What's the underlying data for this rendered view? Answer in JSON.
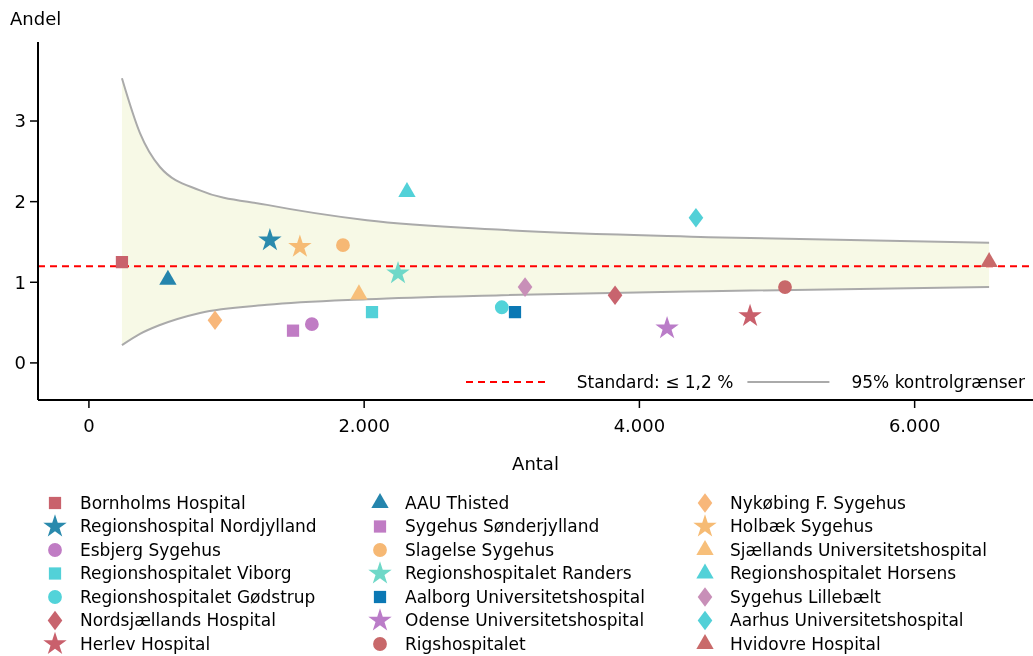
{
  "chart_data": {
    "type": "scatter",
    "xlabel": "Antal",
    "ylabel": "Andel",
    "xlim": [
      -370,
      6860
    ],
    "ylim": [
      -0.46,
      3.98
    ],
    "xticks": [
      {
        "value": 0,
        "label": "0"
      },
      {
        "value": 2000,
        "label": "2.000"
      },
      {
        "value": 4000,
        "label": "4.000"
      },
      {
        "value": 6000,
        "label": "6.000"
      }
    ],
    "yticks": [
      0,
      1,
      2,
      3
    ],
    "grid": false,
    "legend": "bottom",
    "ref_lines": [
      {
        "axis": "y",
        "value": 1.2,
        "label": "Standard: ≤ 1,2 %",
        "color": "#ff0000",
        "line_style": "dashed"
      }
    ],
    "series": [
      {
        "type": "line",
        "name": "95% kontrolgrænser",
        "color": "#aaaaaa",
        "marker": "none",
        "x": [
          240,
          371,
          516,
          807,
          1294,
          2020,
          3000,
          4500,
          6541
        ],
        "values": [
          3.53,
          2.85,
          2.43,
          2.14,
          1.96,
          1.77,
          1.65,
          1.56,
          1.49
        ],
        "upper": [
          3.53,
          2.85,
          2.43,
          2.14,
          1.96,
          1.77,
          1.65,
          1.56,
          1.49
        ],
        "lower": [
          0.22,
          0.36,
          0.47,
          0.62,
          0.72,
          0.79,
          0.84,
          0.89,
          0.94
        ]
      },
      {
        "type": "line",
        "color": "#aaaaaa",
        "marker": "none",
        "x": [
          240,
          371,
          516,
          807,
          1294,
          2020,
          3000,
          4500,
          6541
        ],
        "values": [
          0.22,
          0.36,
          0.47,
          0.62,
          0.72,
          0.79,
          0.84,
          0.89,
          0.94
        ]
      },
      {
        "name": "Bornholms Hospital",
        "color": "#c9626c",
        "marker": "square",
        "x": [
          240
        ],
        "values": [
          1.25
        ]
      },
      {
        "name": "Regionshospital Nordjylland",
        "color": "#2a8aad",
        "marker": "star",
        "x": [
          1315
        ],
        "values": [
          1.52
        ]
      },
      {
        "name": "Esbjerg Sygehus",
        "color": "#c07cc4",
        "marker": "circle",
        "x": [
          1620
        ],
        "values": [
          0.48
        ]
      },
      {
        "name": "Regionshospitalet Viborg",
        "color": "#52d1d8",
        "marker": "square",
        "x": [
          2057
        ],
        "values": [
          0.63
        ]
      },
      {
        "name": "Regionshospitalet Gødstrup",
        "color": "#52d3d9",
        "marker": "circle",
        "x": [
          3000
        ],
        "values": [
          0.69
        ]
      },
      {
        "name": "Nordsjællands Hospital",
        "color": "#c8646e",
        "marker": "diamond",
        "x": [
          3823
        ],
        "values": [
          0.84
        ]
      },
      {
        "name": "Herlev Hospital",
        "color": "#c9606c",
        "marker": "star",
        "x": [
          4804
        ],
        "values": [
          0.58
        ]
      },
      {
        "name": "AAU Thisted",
        "color": "#2585ad",
        "marker": "triangle",
        "x": [
          574
        ],
        "values": [
          1.03
        ]
      },
      {
        "name": "Sygehus Sønderjylland",
        "color": "#c07cc4",
        "marker": "square",
        "x": [
          1483
        ],
        "values": [
          0.4
        ]
      },
      {
        "name": "Slagelse Sygehus",
        "color": "#f6b874",
        "marker": "circle",
        "x": [
          1846
        ],
        "values": [
          1.46
        ]
      },
      {
        "name": "Regionshospitalet Randers",
        "color": "#6fd8c8",
        "marker": "star",
        "x": [
          2246
        ],
        "values": [
          1.11
        ]
      },
      {
        "name": "Aalborg Universitetshospital",
        "color": "#0b78b4",
        "marker": "square",
        "x": [
          3096
        ],
        "values": [
          0.63
        ]
      },
      {
        "name": "Odense Universitetshospital",
        "color": "#ba7cc8",
        "marker": "star",
        "x": [
          4201
        ],
        "values": [
          0.43
        ]
      },
      {
        "name": "Rigshospitalet",
        "color": "#c8686a",
        "marker": "circle",
        "x": [
          5058
        ],
        "values": [
          0.94
        ]
      },
      {
        "name": "Nykøbing F. Sygehus",
        "color": "#f8b77a",
        "marker": "diamond",
        "x": [
          916
        ],
        "values": [
          0.53
        ]
      },
      {
        "name": "Holbæk Sygehus",
        "color": "#f6bb74",
        "marker": "star",
        "x": [
          1533
        ],
        "values": [
          1.44
        ]
      },
      {
        "name": "Sjællands Universitetshospital",
        "color": "#f7bf7a",
        "marker": "triangle",
        "x": [
          1962
        ],
        "values": [
          0.85
        ]
      },
      {
        "name": "Regionshospitalet Horsens",
        "color": "#52d1d8",
        "marker": "triangle",
        "x": [
          2311
        ],
        "values": [
          2.12
        ]
      },
      {
        "name": "Sygehus Lillebælt",
        "color": "#c88fb8",
        "marker": "diamond",
        "x": [
          3169
        ],
        "values": [
          0.94
        ]
      },
      {
        "name": "Aarhus Universitetshospital",
        "color": "#52d0d7",
        "marker": "diamond",
        "x": [
          4411
        ],
        "values": [
          1.8
        ]
      },
      {
        "name": "Hvidovre Hospital",
        "color": "#c96a6a",
        "marker": "triangle",
        "x": [
          6541
        ],
        "values": [
          1.25
        ]
      }
    ]
  }
}
